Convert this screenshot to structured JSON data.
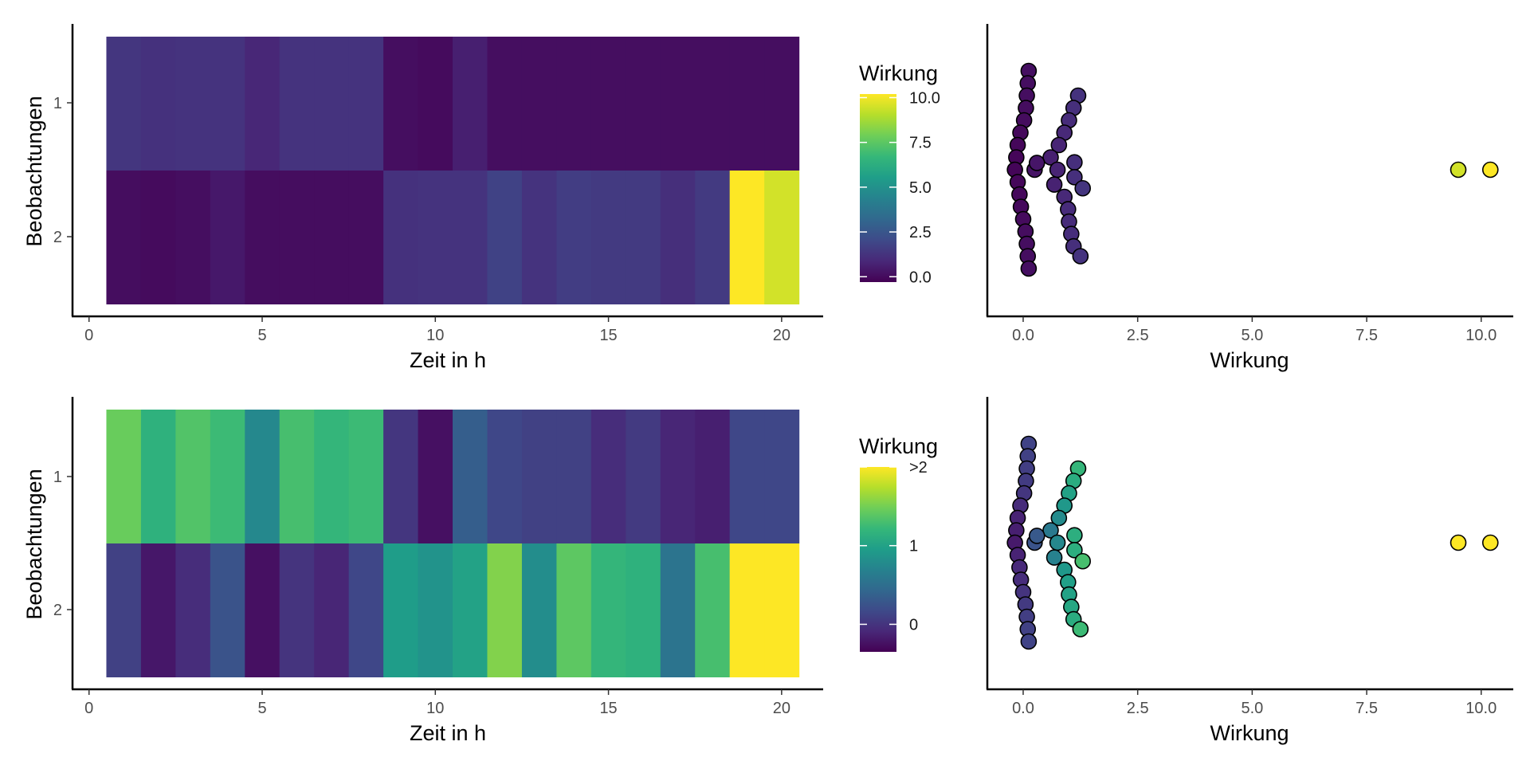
{
  "palette": {
    "stops": [
      "#440154",
      "#482878",
      "#3e4a89",
      "#31688e",
      "#26828e",
      "#1f9e89",
      "#35b779",
      "#6ece58",
      "#b5de2b",
      "#fde725"
    ]
  },
  "chart_data": [
    {
      "type": "heatmap",
      "xlabel": "Zeit in h",
      "ylabel": "Beobachtungen",
      "x": [
        1,
        2,
        3,
        4,
        5,
        6,
        7,
        8,
        9,
        10,
        11,
        12,
        13,
        14,
        15,
        16,
        17,
        18,
        19,
        20
      ],
      "x_ticks": [
        0,
        5,
        10,
        15,
        20
      ],
      "x_tick_labels": [
        "0",
        "5",
        "10",
        "15",
        "20"
      ],
      "xlim": [
        -0.5,
        21.2
      ],
      "rows": [
        "1",
        "2"
      ],
      "values": [
        [
          1.35,
          1.18,
          1.25,
          1.25,
          0.85,
          1.25,
          1.25,
          1.25,
          0.1,
          0.0,
          0.6,
          0.1,
          0.1,
          0.1,
          0.1,
          0.1,
          0.1,
          0.1,
          0.1,
          0.1
        ],
        [
          0.05,
          0.0,
          0.1,
          0.4,
          0.05,
          0.05,
          0.05,
          0.05,
          1.18,
          1.25,
          1.25,
          1.75,
          1.25,
          1.6,
          1.5,
          1.5,
          1.1,
          1.5,
          10.2,
          9.5
        ]
      ],
      "legend": {
        "title": "Wirkung",
        "min": -0.3,
        "max": 10.2,
        "ticks": [
          0.0,
          2.5,
          5.0,
          7.5,
          10.0
        ],
        "labels": [
          "0.0",
          "2.5",
          "5.0",
          "7.5",
          "10.0"
        ]
      }
    },
    {
      "type": "scatter",
      "subtype": "beeswarm",
      "xlabel": "Wirkung",
      "x_ticks": [
        0.0,
        2.5,
        5.0,
        7.5,
        10.0
      ],
      "x_tick_labels": [
        "0.0",
        "2.5",
        "5.0",
        "7.5",
        "10.0"
      ],
      "xlim": [
        -0.8,
        10.7
      ],
      "points": [
        [
          0.12,
          -8
        ],
        [
          0.1,
          -7
        ],
        [
          0.08,
          -6
        ],
        [
          0.06,
          -5
        ],
        [
          0.02,
          -4
        ],
        [
          -0.06,
          -3
        ],
        [
          -0.12,
          -2
        ],
        [
          -0.15,
          -1
        ],
        [
          -0.18,
          0
        ],
        [
          -0.12,
          1
        ],
        [
          -0.08,
          2
        ],
        [
          -0.05,
          3
        ],
        [
          0.0,
          4
        ],
        [
          0.05,
          5
        ],
        [
          0.08,
          6
        ],
        [
          0.1,
          7
        ],
        [
          0.12,
          8
        ],
        [
          1.2,
          -6
        ],
        [
          1.1,
          -5
        ],
        [
          1.0,
          -4
        ],
        [
          0.9,
          -3
        ],
        [
          0.78,
          -2
        ],
        [
          0.6,
          -1
        ],
        [
          0.25,
          0
        ],
        [
          0.3,
          -0.55
        ],
        [
          0.75,
          0
        ],
        [
          1.12,
          -0.6
        ],
        [
          1.12,
          0.6
        ],
        [
          1.3,
          1.5
        ],
        [
          0.68,
          1.2
        ],
        [
          0.9,
          2.2
        ],
        [
          0.98,
          3.2
        ],
        [
          1.0,
          4.2
        ],
        [
          1.05,
          5.2
        ],
        [
          1.1,
          6.2
        ],
        [
          1.25,
          7
        ]
      ],
      "outliers": [
        9.5,
        10.2
      ]
    },
    {
      "type": "heatmap",
      "xlabel": "Zeit in h",
      "ylabel": "Beobachtungen",
      "x": [
        1,
        2,
        3,
        4,
        5,
        6,
        7,
        8,
        9,
        10,
        11,
        12,
        13,
        14,
        15,
        16,
        17,
        18,
        19,
        20
      ],
      "x_ticks": [
        0,
        5,
        10,
        15,
        20
      ],
      "x_tick_labels": [
        "0",
        "5",
        "10",
        "15",
        "20"
      ],
      "xlim": [
        -0.5,
        21.2
      ],
      "rows": [
        "1",
        "2"
      ],
      "values": [
        [
          1.45,
          1.15,
          1.35,
          1.25,
          0.75,
          1.3,
          1.2,
          1.25,
          0.02,
          -0.25,
          0.35,
          0.15,
          0.1,
          0.1,
          -0.05,
          0.05,
          -0.1,
          -0.15,
          0.15,
          0.15
        ],
        [
          0.1,
          -0.2,
          -0.05,
          0.25,
          -0.25,
          0.0,
          -0.1,
          0.15,
          0.95,
          0.85,
          1.0,
          1.55,
          0.8,
          1.4,
          1.2,
          1.15,
          0.55,
          1.3,
          3.0,
          3.0
        ]
      ],
      "legend": {
        "title": "Wirkung",
        "min": -0.35,
        "max": 2.0,
        "ticks": [
          0,
          1,
          2
        ],
        "labels": [
          "0",
          "1",
          ">2"
        ]
      }
    },
    {
      "type": "scatter",
      "subtype": "beeswarm",
      "xlabel": "Wirkung",
      "x_ticks": [
        0.0,
        2.5,
        5.0,
        7.5,
        10.0
      ],
      "x_tick_labels": [
        "0.0",
        "2.5",
        "5.0",
        "7.5",
        "10.0"
      ],
      "xlim": [
        -0.8,
        10.7
      ],
      "color_min": -0.35,
      "color_max": 2.0,
      "points": [
        [
          0.12,
          -8
        ],
        [
          0.1,
          -7
        ],
        [
          0.08,
          -6
        ],
        [
          0.06,
          -5
        ],
        [
          0.02,
          -4
        ],
        [
          -0.06,
          -3
        ],
        [
          -0.12,
          -2
        ],
        [
          -0.15,
          -1
        ],
        [
          -0.18,
          0
        ],
        [
          -0.12,
          1
        ],
        [
          -0.08,
          2
        ],
        [
          -0.05,
          3
        ],
        [
          0.0,
          4
        ],
        [
          0.05,
          5
        ],
        [
          0.08,
          6
        ],
        [
          0.1,
          7
        ],
        [
          0.12,
          8
        ],
        [
          1.2,
          -6
        ],
        [
          1.1,
          -5
        ],
        [
          1.0,
          -4
        ],
        [
          0.9,
          -3
        ],
        [
          0.78,
          -2
        ],
        [
          0.6,
          -1
        ],
        [
          0.25,
          0
        ],
        [
          0.3,
          -0.55
        ],
        [
          0.75,
          0
        ],
        [
          1.12,
          -0.6
        ],
        [
          1.12,
          0.6
        ],
        [
          1.3,
          1.5
        ],
        [
          0.68,
          1.2
        ],
        [
          0.9,
          2.2
        ],
        [
          0.98,
          3.2
        ],
        [
          1.0,
          4.2
        ],
        [
          1.05,
          5.2
        ],
        [
          1.1,
          6.2
        ],
        [
          1.25,
          7
        ]
      ],
      "outliers": [
        9.5,
        10.2
      ]
    }
  ]
}
